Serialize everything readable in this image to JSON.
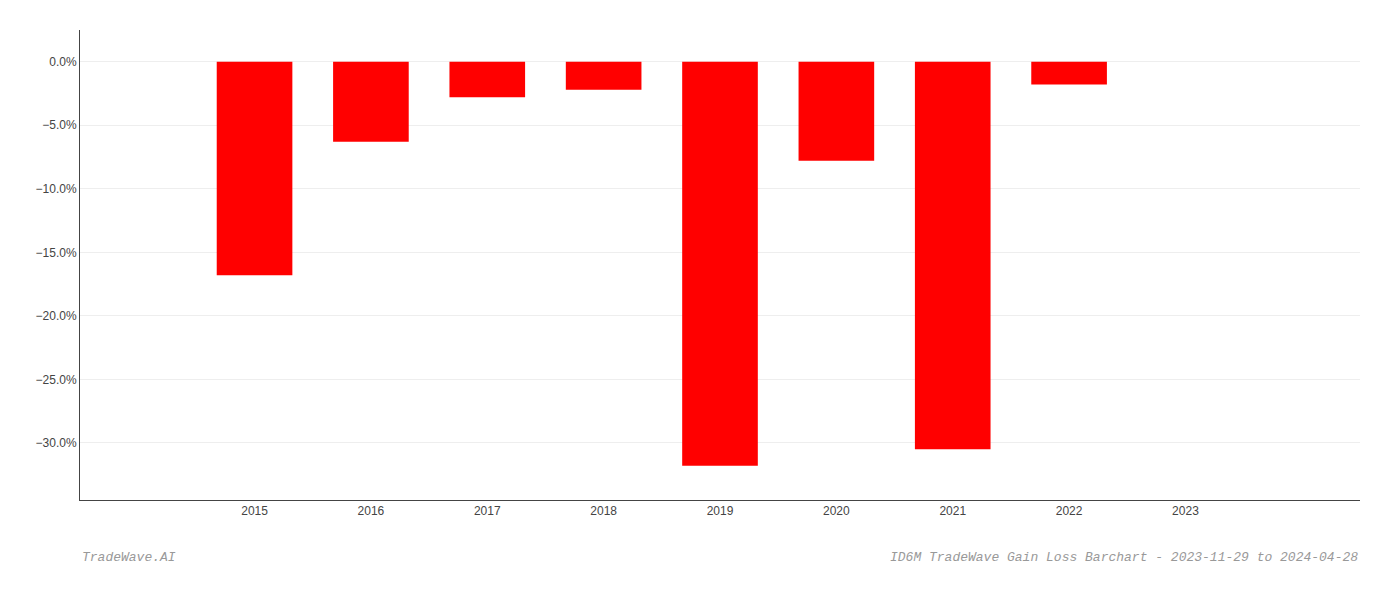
{
  "chart_data": {
    "type": "bar",
    "x": [
      2015,
      2016,
      2017,
      2018,
      2019,
      2020,
      2021,
      2022
    ],
    "values": [
      -16.8,
      -6.3,
      -2.8,
      -2.2,
      -31.8,
      -7.8,
      -30.5,
      -1.8
    ],
    "color": "#ff0000",
    "xlim": [
      2013.5,
      2024.5
    ],
    "xticks": [
      2015,
      2016,
      2017,
      2018,
      2019,
      2020,
      2021,
      2022,
      2023
    ],
    "ylim": [
      -34.5,
      2.5
    ],
    "yticks": [
      {
        "value": 0.0,
        "label": "0.0%"
      },
      {
        "value": -5.0,
        "label": "−5.0%"
      },
      {
        "value": -10.0,
        "label": "−10.0%"
      },
      {
        "value": -15.0,
        "label": "−15.0%"
      },
      {
        "value": -20.0,
        "label": "−20.0%"
      },
      {
        "value": -25.0,
        "label": "−25.0%"
      },
      {
        "value": -30.0,
        "label": "−30.0%"
      }
    ],
    "grid": "y",
    "annotations": [
      "TradeWave.AI",
      "ID6M TradeWave Gain Loss Barchart - 2023-11-29 to 2024-04-28"
    ]
  }
}
